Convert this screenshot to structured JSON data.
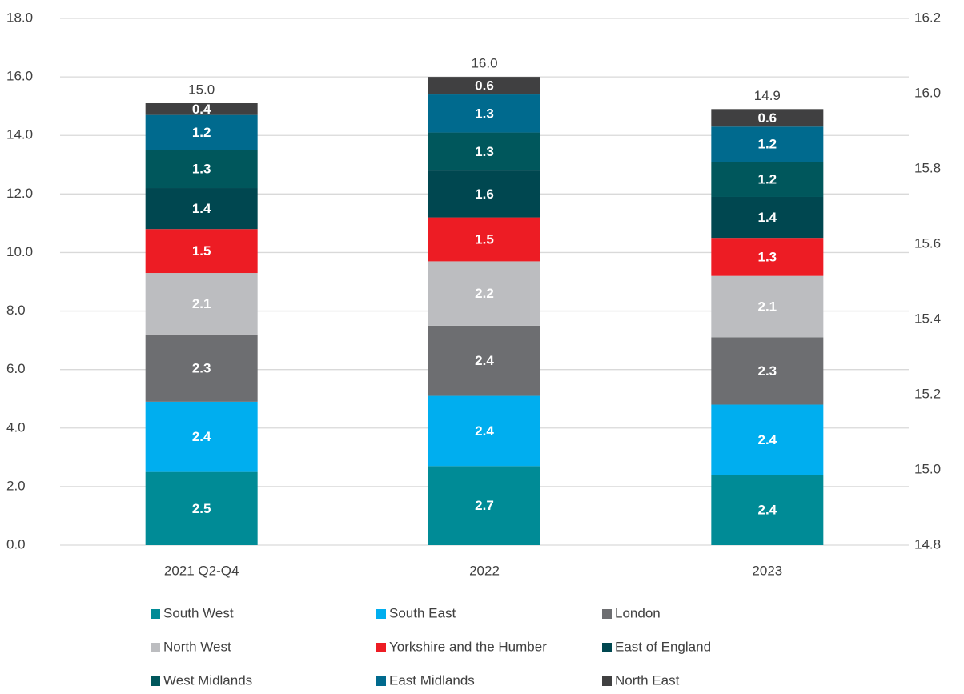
{
  "chart_data": {
    "type": "stacked_bar",
    "categories": [
      "2021 Q2-Q4",
      "2022",
      "2023"
    ],
    "series": [
      {
        "name": "South West",
        "color": "#008b96",
        "values": [
          2.5,
          2.7,
          2.4
        ]
      },
      {
        "name": "South East",
        "color": "#00aeef",
        "values": [
          2.4,
          2.4,
          2.4
        ]
      },
      {
        "name": "London",
        "color": "#6d6e71",
        "values": [
          2.3,
          2.4,
          2.3
        ]
      },
      {
        "name": "North West",
        "color": "#bcbdc0",
        "values": [
          2.1,
          2.2,
          2.1
        ]
      },
      {
        "name": "Yorkshire and the Humber",
        "color": "#ed1c24",
        "values": [
          1.5,
          1.5,
          1.3
        ]
      },
      {
        "name": "East of England",
        "color": "#004750",
        "values": [
          1.4,
          1.6,
          1.4
        ]
      },
      {
        "name": "West Midlands",
        "color": "#00575c",
        "values": [
          1.3,
          1.3,
          1.2
        ]
      },
      {
        "name": "East Midlands",
        "color": "#006a8e",
        "values": [
          1.2,
          1.3,
          1.2
        ]
      },
      {
        "name": "North East",
        "color": "#404041",
        "values": [
          0.4,
          0.6,
          0.6
        ]
      }
    ],
    "totals": {
      "values": [
        15,
        16,
        14.9
      ],
      "value_labels": [
        "15.0",
        "16.0",
        "14.9"
      ]
    },
    "ylim": [
      0,
      18
    ],
    "yticks": [
      {
        "value": 0,
        "label": "0.0"
      },
      {
        "value": 2,
        "label": "2.0"
      },
      {
        "value": 4,
        "label": "4.0"
      },
      {
        "value": 6,
        "label": "6.0"
      },
      {
        "value": 8,
        "label": "8.0"
      },
      {
        "value": 10,
        "label": "10.0"
      },
      {
        "value": 12,
        "label": "12.0"
      },
      {
        "value": 14,
        "label": "14.0"
      },
      {
        "value": 16,
        "label": "16.0"
      },
      {
        "value": 18,
        "label": "18.0"
      }
    ],
    "y2lim": [
      14.8,
      16.2
    ],
    "y2ticks": [
      14.8,
      {
        "value": 15,
        "label": "15.0"
      },
      15.2,
      15.4,
      15.6,
      15.8,
      {
        "value": 16,
        "label": "16.0"
      },
      16.2
    ],
    "grid": true,
    "legend": "bottom"
  }
}
